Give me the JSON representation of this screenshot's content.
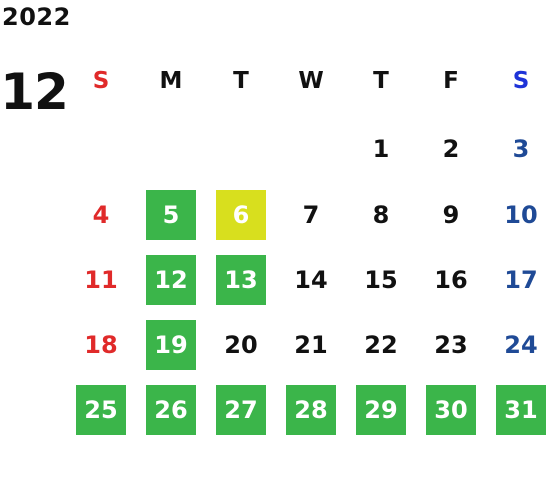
{
  "year": "2022",
  "month": "12",
  "colors": {
    "sunday": "#e02a2a",
    "saturday_header": "#1e33d8",
    "saturday": "#1f4a96",
    "weekday": "#111111",
    "green": "#3bb54a",
    "yellow": "#d8df1e",
    "highlight_text": "#ffffff"
  },
  "weekdays": [
    {
      "label": "S",
      "kind": "sunday"
    },
    {
      "label": "M",
      "kind": "weekday"
    },
    {
      "label": "T",
      "kind": "weekday"
    },
    {
      "label": "W",
      "kind": "weekday"
    },
    {
      "label": "T",
      "kind": "weekday"
    },
    {
      "label": "F",
      "kind": "weekday"
    },
    {
      "label": "S",
      "kind": "saturday_header"
    }
  ],
  "weeks": [
    [
      null,
      null,
      null,
      null,
      {
        "day": "1",
        "kind": "weekday"
      },
      {
        "day": "2",
        "kind": "weekday"
      },
      {
        "day": "3",
        "kind": "saturday"
      }
    ],
    [
      {
        "day": "4",
        "kind": "sunday"
      },
      {
        "day": "5",
        "kind": "weekday",
        "mark": "green"
      },
      {
        "day": "6",
        "kind": "weekday",
        "mark": "yellow"
      },
      {
        "day": "7",
        "kind": "weekday"
      },
      {
        "day": "8",
        "kind": "weekday"
      },
      {
        "day": "9",
        "kind": "weekday"
      },
      {
        "day": "10",
        "kind": "saturday"
      }
    ],
    [
      {
        "day": "11",
        "kind": "sunday"
      },
      {
        "day": "12",
        "kind": "weekday",
        "mark": "green"
      },
      {
        "day": "13",
        "kind": "weekday",
        "mark": "green"
      },
      {
        "day": "14",
        "kind": "weekday"
      },
      {
        "day": "15",
        "kind": "weekday"
      },
      {
        "day": "16",
        "kind": "weekday"
      },
      {
        "day": "17",
        "kind": "saturday"
      }
    ],
    [
      {
        "day": "18",
        "kind": "sunday"
      },
      {
        "day": "19",
        "kind": "weekday",
        "mark": "green"
      },
      {
        "day": "20",
        "kind": "weekday"
      },
      {
        "day": "21",
        "kind": "weekday"
      },
      {
        "day": "22",
        "kind": "weekday"
      },
      {
        "day": "23",
        "kind": "weekday"
      },
      {
        "day": "24",
        "kind": "saturday"
      }
    ],
    [
      {
        "day": "25",
        "kind": "sunday",
        "mark": "green"
      },
      {
        "day": "26",
        "kind": "weekday",
        "mark": "green"
      },
      {
        "day": "27",
        "kind": "weekday",
        "mark": "green"
      },
      {
        "day": "28",
        "kind": "weekday",
        "mark": "green"
      },
      {
        "day": "29",
        "kind": "weekday",
        "mark": "green"
      },
      {
        "day": "30",
        "kind": "weekday",
        "mark": "green"
      },
      {
        "day": "31",
        "kind": "saturday",
        "mark": "green"
      }
    ]
  ]
}
